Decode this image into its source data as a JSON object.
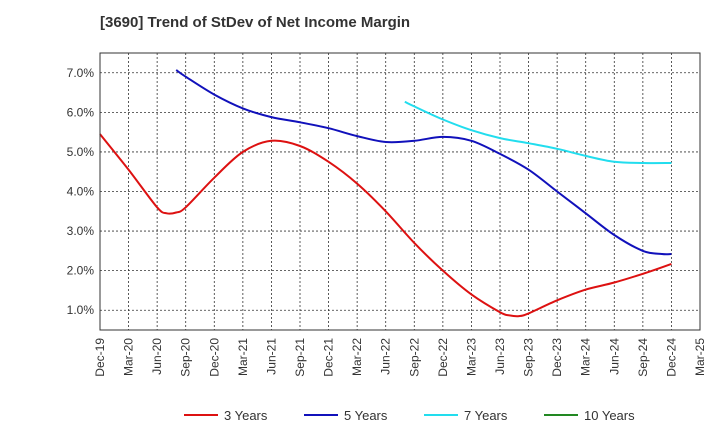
{
  "chart_data": {
    "type": "line",
    "title": "[3690]  Trend of StDev of Net Income Margin",
    "xlabel": "",
    "ylabel": "",
    "ylim": [
      0.5,
      7.5
    ],
    "y_ticks": [
      1.0,
      2.0,
      3.0,
      4.0,
      5.0,
      6.0,
      7.0
    ],
    "y_tick_labels": [
      "1.0%",
      "2.0%",
      "3.0%",
      "4.0%",
      "5.0%",
      "6.0%",
      "7.0%"
    ],
    "x_tick_labels": [
      "Dec-19",
      "Mar-20",
      "Jun-20",
      "Sep-20",
      "Dec-20",
      "Mar-21",
      "Jun-21",
      "Sep-21",
      "Dec-21",
      "Mar-22",
      "Jun-22",
      "Sep-22",
      "Dec-22",
      "Mar-23",
      "Jun-23",
      "Sep-23",
      "Dec-23",
      "Mar-24",
      "Jun-24",
      "Sep-24",
      "Dec-24",
      "Mar-25"
    ],
    "grid": true,
    "legend_position": "bottom",
    "series": [
      {
        "name": "3 Years",
        "color": "#dd1111",
        "x": [
          "Dec-19",
          "Mar-20",
          "Jun-20",
          "Jul-20",
          "Aug-20",
          "Sep-20",
          "Dec-20",
          "Mar-21",
          "Jun-21",
          "Sep-21",
          "Dec-21",
          "Mar-22",
          "Jun-22",
          "Sep-22",
          "Dec-22",
          "Mar-23",
          "Jun-23",
          "Jul-23",
          "Aug-23",
          "Sep-23",
          "Dec-23",
          "Mar-24",
          "Jun-24",
          "Sep-24",
          "Dec-24"
        ],
        "values": [
          5.45,
          4.55,
          3.6,
          3.45,
          3.47,
          3.6,
          4.35,
          5.0,
          5.28,
          5.15,
          4.75,
          4.2,
          3.5,
          2.7,
          2.0,
          1.4,
          0.95,
          0.87,
          0.85,
          0.92,
          1.25,
          1.52,
          1.7,
          1.92,
          2.17
        ]
      },
      {
        "name": "5 Years",
        "color": "#1111bb",
        "x": [
          "Aug-20",
          "Sep-20",
          "Dec-20",
          "Mar-21",
          "Jun-21",
          "Sep-21",
          "Dec-21",
          "Mar-22",
          "Jun-22",
          "Sep-22",
          "Dec-22",
          "Mar-23",
          "Jun-23",
          "Sep-23",
          "Dec-23",
          "Mar-24",
          "Jun-24",
          "Sep-24",
          "Nov-24",
          "Dec-24"
        ],
        "values": [
          7.07,
          6.9,
          6.45,
          6.1,
          5.88,
          5.75,
          5.6,
          5.4,
          5.25,
          5.28,
          5.38,
          5.28,
          4.95,
          4.55,
          4.0,
          3.45,
          2.9,
          2.5,
          2.42,
          2.42
        ]
      },
      {
        "name": "7 Years",
        "color": "#22ddee",
        "x": [
          "Aug-22",
          "Sep-22",
          "Dec-22",
          "Mar-23",
          "Jun-23",
          "Sep-23",
          "Dec-23",
          "Mar-24",
          "Jun-24",
          "Sep-24",
          "Dec-24"
        ],
        "values": [
          6.27,
          6.15,
          5.82,
          5.55,
          5.35,
          5.22,
          5.08,
          4.9,
          4.75,
          4.72,
          4.72
        ]
      },
      {
        "name": "10 Years",
        "color": "#228822",
        "x": [],
        "values": []
      }
    ]
  }
}
